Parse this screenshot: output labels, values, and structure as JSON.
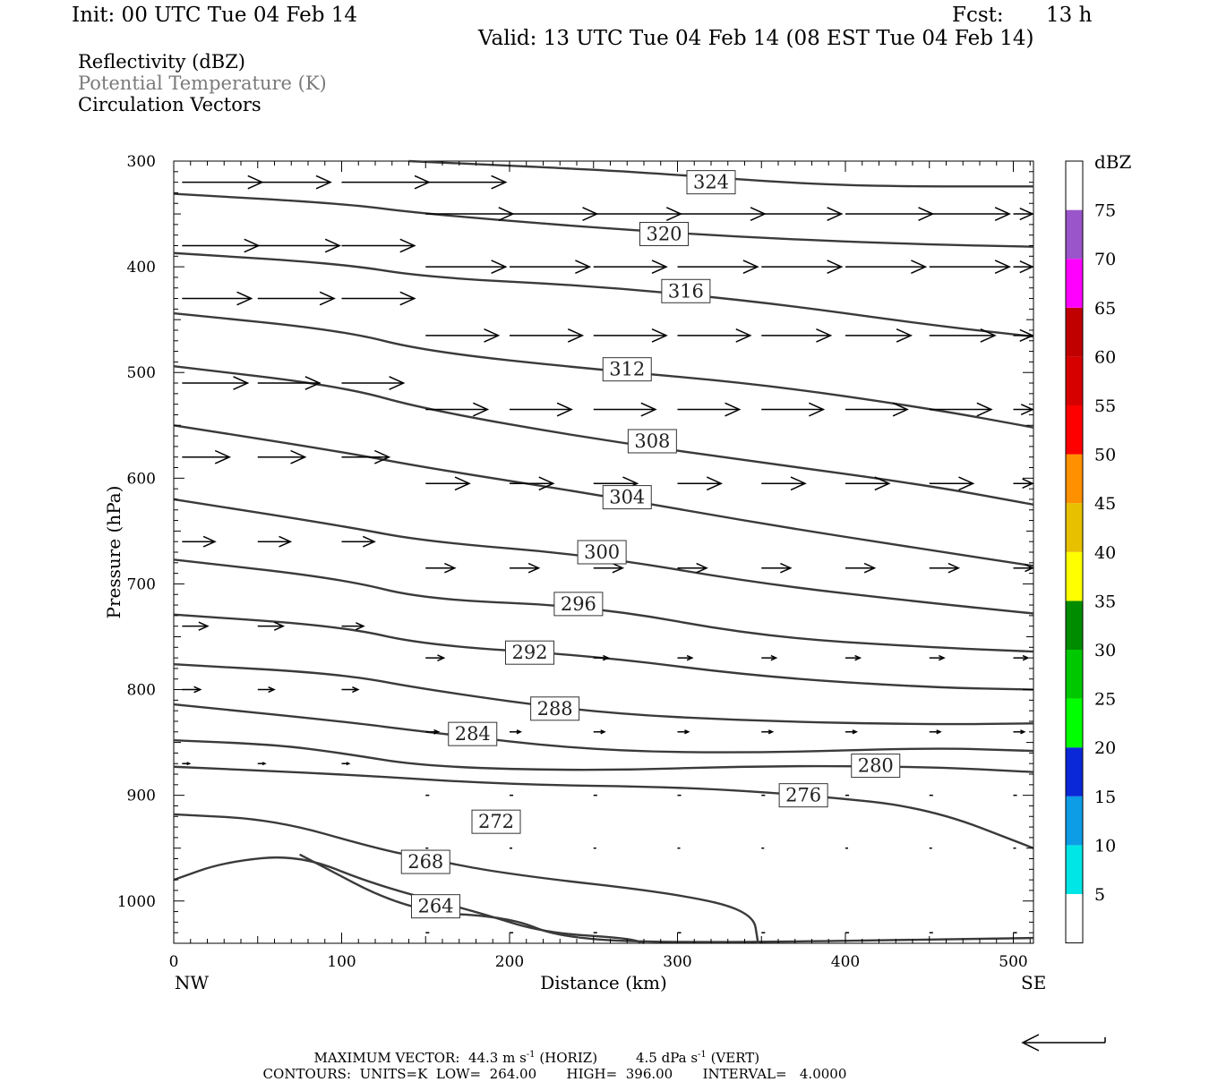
{
  "header": {
    "init": "Init: 00 UTC Tue 04 Feb 14",
    "fcst_label": "Fcst:",
    "fcst_value": "13 h",
    "valid": "Valid: 13 UTC Tue 04 Feb 14 (08 EST Tue 04 Feb 14)"
  },
  "legend": {
    "line1": "Reflectivity (dBZ)",
    "line2": "Potential Temperature (K)",
    "line3": "Circulation Vectors",
    "line2_color": "#7a7a7a"
  },
  "footer": {
    "max_vector_label": "MAXIMUM VECTOR:",
    "max_vector_horiz": "44.3 m s",
    "exp1": "-1",
    "horiz_tag": "(HORIZ)",
    "max_vector_vert": "4.5 dPa s",
    "exp2": "-1",
    "vert_tag": "(VERT)",
    "contours_label": "CONTOURS:",
    "units": "UNITS=K",
    "low_label": "LOW=",
    "low_value": "264.00",
    "high_label": "HIGH=",
    "high_value": "396.00",
    "interval_label": "INTERVAL=",
    "interval_value": "4.0000"
  },
  "chart_data": {
    "type": "cross-section",
    "xlabel": "Distance (km)",
    "ylabel": "Pressure (hPa)",
    "xlim": [
      0,
      512
    ],
    "ylim": [
      300,
      1040
    ],
    "y_reversed": true,
    "x_ticks": [
      0,
      100,
      200,
      300,
      400,
      500
    ],
    "y_ticks": [
      300,
      400,
      500,
      600,
      700,
      800,
      900,
      1000
    ],
    "x_end_labels": {
      "left": "NW",
      "right": "SE"
    },
    "colorbar": {
      "title": "dBZ",
      "labels": [
        "5",
        "10",
        "15",
        "20",
        "25",
        "30",
        "35",
        "40",
        "45",
        "50",
        "55",
        "60",
        "65",
        "70",
        "75"
      ],
      "colors": [
        "#ffffff",
        "#00e5e5",
        "#0c9de6",
        "#0a28d8",
        "#00ff00",
        "#00c800",
        "#008c00",
        "#ffff00",
        "#e7c000",
        "#ff9000",
        "#ff0000",
        "#d60000",
        "#c00000",
        "#ff00ff",
        "#9955c9",
        "#ffffff"
      ]
    },
    "theta_contours": [
      {
        "value": 324,
        "label": "324",
        "label_at": [
          320,
          320
        ],
        "points": [
          [
            140,
            300
          ],
          [
            250,
            308
          ],
          [
            300,
            313
          ],
          [
            360,
            320
          ],
          [
            420,
            324
          ],
          [
            512,
            324
          ]
        ]
      },
      {
        "value": 320,
        "label": "320",
        "label_at": [
          292,
          369
        ],
        "points": [
          [
            0,
            331
          ],
          [
            100,
            340
          ],
          [
            150,
            350
          ],
          [
            250,
            363
          ],
          [
            350,
            373
          ],
          [
            450,
            379
          ],
          [
            512,
            381
          ]
        ]
      },
      {
        "value": 316,
        "label": "316",
        "label_at": [
          305,
          423
        ],
        "points": [
          [
            0,
            387
          ],
          [
            100,
            397
          ],
          [
            150,
            410
          ],
          [
            250,
            418
          ],
          [
            350,
            433
          ],
          [
            450,
            455
          ],
          [
            512,
            466
          ]
        ]
      },
      {
        "value": 312,
        "label": "312",
        "label_at": [
          270,
          497
        ],
        "points": [
          [
            0,
            444
          ],
          [
            100,
            460
          ],
          [
            150,
            480
          ],
          [
            250,
            497
          ],
          [
            350,
            511
          ],
          [
            450,
            534
          ],
          [
            512,
            552
          ]
        ]
      },
      {
        "value": 308,
        "label": "308",
        "label_at": [
          285,
          565
        ],
        "points": [
          [
            0,
            494
          ],
          [
            100,
            513
          ],
          [
            150,
            535
          ],
          [
            250,
            563
          ],
          [
            350,
            585
          ],
          [
            450,
            607
          ],
          [
            512,
            625
          ]
        ]
      },
      {
        "value": 304,
        "label": "304",
        "label_at": [
          270,
          618
        ],
        "points": [
          [
            0,
            550
          ],
          [
            100,
            575
          ],
          [
            150,
            590
          ],
          [
            250,
            615
          ],
          [
            350,
            643
          ],
          [
            450,
            668
          ],
          [
            512,
            683
          ]
        ]
      },
      {
        "value": 300,
        "label": "300",
        "label_at": [
          255,
          670
        ],
        "points": [
          [
            0,
            620
          ],
          [
            100,
            645
          ],
          [
            150,
            660
          ],
          [
            250,
            673
          ],
          [
            350,
            700
          ],
          [
            450,
            718
          ],
          [
            512,
            728
          ]
        ]
      },
      {
        "value": 296,
        "label": "296",
        "label_at": [
          241,
          719
        ],
        "points": [
          [
            0,
            677
          ],
          [
            100,
            695
          ],
          [
            150,
            715
          ],
          [
            250,
            721
          ],
          [
            350,
            750
          ],
          [
            450,
            760
          ],
          [
            512,
            764
          ]
        ]
      },
      {
        "value": 292,
        "label": "292",
        "label_at": [
          212,
          765
        ],
        "points": [
          [
            0,
            729
          ],
          [
            100,
            740
          ],
          [
            150,
            758
          ],
          [
            250,
            768
          ],
          [
            350,
            788
          ],
          [
            450,
            798
          ],
          [
            512,
            800
          ]
        ]
      },
      {
        "value": 288,
        "label": "288",
        "label_at": [
          227,
          818
        ],
        "points": [
          [
            0,
            776
          ],
          [
            100,
            785
          ],
          [
            150,
            800
          ],
          [
            250,
            822
          ],
          [
            350,
            830
          ],
          [
            450,
            833
          ],
          [
            512,
            832
          ]
        ]
      },
      {
        "value": 284,
        "label": "284",
        "label_at": [
          178,
          842
        ],
        "points": [
          [
            0,
            814
          ],
          [
            100,
            830
          ],
          [
            150,
            840
          ],
          [
            250,
            858
          ],
          [
            350,
            860
          ],
          [
            450,
            855
          ],
          [
            512,
            858
          ]
        ]
      },
      {
        "value": 280,
        "label": "280",
        "label_at": [
          418,
          872
        ],
        "points": [
          [
            0,
            848
          ],
          [
            60,
            852
          ],
          [
            100,
            860
          ],
          [
            150,
            873
          ],
          [
            250,
            877
          ],
          [
            350,
            872
          ],
          [
            450,
            873
          ],
          [
            512,
            878
          ]
        ]
      },
      {
        "value": 276,
        "label": "276",
        "label_at": [
          375,
          900
        ],
        "points": [
          [
            0,
            873
          ],
          [
            100,
            880
          ],
          [
            200,
            890
          ],
          [
            300,
            892
          ],
          [
            380,
            900
          ],
          [
            450,
            912
          ],
          [
            512,
            950
          ]
        ]
      },
      {
        "value": 272,
        "label": "272",
        "label_at": [
          192,
          925
        ],
        "points": [
          [
            0,
            918
          ],
          [
            60,
            923
          ],
          [
            120,
            950
          ],
          [
            150,
            960
          ],
          [
            200,
            975
          ],
          [
            300,
            993
          ],
          [
            345,
            1010
          ],
          [
            348,
            1040
          ]
        ]
      },
      {
        "value": 268,
        "label": "268",
        "label_at": [
          150,
          963
        ],
        "points": [
          [
            0,
            980
          ],
          [
            30,
            963
          ],
          [
            75,
            956
          ],
          [
            120,
            985
          ],
          [
            180,
            1010
          ],
          [
            220,
            1030
          ],
          [
            270,
            1035
          ],
          [
            280,
            1040
          ]
        ]
      },
      {
        "value": 264,
        "label": "264",
        "label_at": [
          156,
          1005
        ],
        "points": [
          [
            75,
            956
          ],
          [
            140,
            1010
          ],
          [
            200,
            1015
          ],
          [
            230,
            1035
          ],
          [
            300,
            1040
          ],
          [
            512,
            1035
          ]
        ]
      }
    ],
    "wind_vectors": [
      {
        "p": 320,
        "x": [
          5,
          50,
          100,
          150
        ],
        "u": [
          44,
          40,
          48,
          44
        ]
      },
      {
        "p": 350,
        "x": [
          150,
          200,
          250,
          300,
          350,
          400,
          450,
          500
        ],
        "u": [
          48,
          48,
          48,
          48,
          44,
          48,
          44,
          20
        ]
      },
      {
        "p": 380,
        "x": [
          5,
          50,
          100
        ],
        "u": [
          42,
          45,
          40
        ]
      },
      {
        "p": 400,
        "x": [
          150,
          200,
          250,
          300,
          350,
          400,
          450,
          500
        ],
        "u": [
          44,
          44,
          40,
          44,
          44,
          44,
          44,
          20
        ]
      },
      {
        "p": 430,
        "x": [
          5,
          50,
          100
        ],
        "u": [
          38,
          42,
          40
        ]
      },
      {
        "p": 465,
        "x": [
          150,
          200,
          250,
          300,
          350,
          400,
          450,
          500
        ],
        "u": [
          40,
          40,
          40,
          40,
          38,
          36,
          36,
          20
        ]
      },
      {
        "p": 510,
        "x": [
          5,
          50,
          100
        ],
        "u": [
          36,
          34,
          34
        ]
      },
      {
        "p": 535,
        "x": [
          150,
          200,
          250,
          300,
          350,
          400,
          450,
          500
        ],
        "u": [
          34,
          34,
          34,
          34,
          34,
          34,
          34,
          18
        ]
      },
      {
        "p": 580,
        "x": [
          5,
          50,
          100
        ],
        "u": [
          26,
          26,
          26
        ]
      },
      {
        "p": 605,
        "x": [
          150,
          200,
          250,
          300,
          350,
          400,
          450,
          500
        ],
        "u": [
          24,
          24,
          24,
          24,
          24,
          24,
          24,
          16
        ]
      },
      {
        "p": 660,
        "x": [
          5,
          50,
          100
        ],
        "u": [
          18,
          18,
          18
        ]
      },
      {
        "p": 685,
        "x": [
          150,
          200,
          250,
          300,
          350,
          400,
          450,
          500
        ],
        "u": [
          16,
          16,
          16,
          16,
          16,
          16,
          16,
          12
        ]
      },
      {
        "p": 740,
        "x": [
          5,
          50,
          100
        ],
        "u": [
          14,
          14,
          12
        ]
      },
      {
        "p": 770,
        "x": [
          150,
          200,
          250,
          300,
          350,
          400,
          450,
          500
        ],
        "u": [
          10,
          10,
          8,
          8,
          8,
          8,
          8,
          8
        ]
      },
      {
        "p": 800,
        "x": [
          5,
          50,
          100
        ],
        "u": [
          10,
          9,
          9
        ]
      },
      {
        "p": 840,
        "x": [
          150,
          200,
          250,
          300,
          350,
          400,
          450,
          500
        ],
        "u": [
          7,
          6,
          6,
          6,
          6,
          6,
          6,
          6
        ]
      },
      {
        "p": 870,
        "x": [
          5,
          50,
          100
        ],
        "u": [
          4,
          4,
          4
        ]
      },
      {
        "p": 900,
        "x": [
          150,
          200,
          250,
          300,
          350,
          400,
          450,
          500
        ],
        "u": [
          2,
          2,
          2,
          2,
          2,
          2,
          2,
          2
        ]
      },
      {
        "p": 950,
        "x": [
          150,
          200,
          250,
          300,
          350,
          400,
          450,
          500
        ],
        "u": [
          1,
          1,
          1,
          1,
          1,
          1,
          1,
          1
        ]
      },
      {
        "p": 1030,
        "x": [
          150,
          200,
          250,
          300,
          350,
          400,
          450,
          500
        ],
        "u": [
          2,
          2,
          2,
          2,
          2,
          2,
          2,
          2
        ]
      }
    ]
  }
}
